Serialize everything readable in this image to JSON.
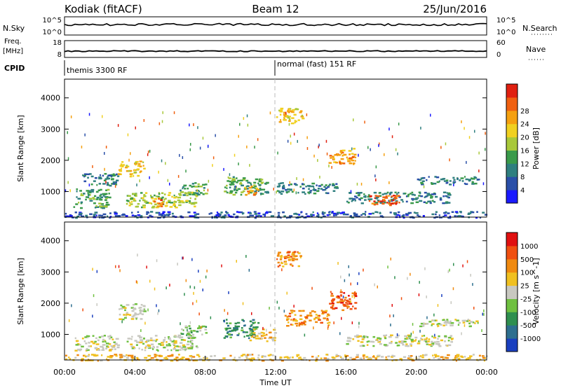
{
  "header": {
    "station": "Kodiak (fitACF)",
    "beam": "Beam 12",
    "date": "25/Jun/2016"
  },
  "top_panels": {
    "nsky_label": "N.Sky",
    "nsky_ticks": [
      "10^5",
      "10^0"
    ],
    "nsearch_label": "N.Search",
    "nsearch_ticks": [
      "10^5",
      "10^0"
    ],
    "freq_label": "Freq.",
    "freq_unit": "[MHz]",
    "freq_ticks": [
      "18",
      "8"
    ],
    "nave_label": "Nave",
    "nave_ticks": [
      "60",
      "0"
    ],
    "cpid_label": "CPID",
    "cpid_segments": [
      {
        "label": "themis 3300 RF",
        "start_hour": 0
      },
      {
        "label": "normal (fast) 151 RF",
        "start_hour": 12
      }
    ]
  },
  "chart_data": [
    {
      "type": "heatmap",
      "name": "power",
      "ylabel": "Slant Range [km]",
      "ylim": [
        180,
        4600
      ],
      "yticks": [
        1000,
        2000,
        3000,
        4000
      ],
      "xlim": [
        0,
        24
      ],
      "colorbar": {
        "label": "Power [dB]",
        "ticks": [
          "4",
          "8",
          "12",
          "16",
          "20",
          "24",
          "28"
        ],
        "colors": [
          "#1a1aff",
          "#2a4fa8",
          "#2f7f7f",
          "#3a9a4a",
          "#a8c83a",
          "#f0d020",
          "#f5a010",
          "#f06010",
          "#e02010"
        ]
      },
      "regions": [
        {
          "t0": 0.5,
          "t1": 2.5,
          "r0": 480,
          "r1": 1100,
          "level": 3
        },
        {
          "t0": 1.0,
          "t1": 3.0,
          "r0": 1200,
          "r1": 1600,
          "level": 2
        },
        {
          "t0": 3.0,
          "t1": 4.5,
          "r0": 1500,
          "r1": 2000,
          "level": 5
        },
        {
          "t0": 3.5,
          "t1": 7.5,
          "r0": 500,
          "r1": 1000,
          "level": 4
        },
        {
          "t0": 4.8,
          "t1": 5.6,
          "r0": 550,
          "r1": 800,
          "level": 7
        },
        {
          "t0": 6.5,
          "t1": 8.0,
          "r0": 900,
          "r1": 1300,
          "level": 3
        },
        {
          "t0": 9.0,
          "t1": 11.5,
          "r0": 900,
          "r1": 1500,
          "level": 3
        },
        {
          "t0": 10.2,
          "t1": 11.0,
          "r0": 900,
          "r1": 1200,
          "level": 6
        },
        {
          "t0": 12.0,
          "t1": 13.5,
          "r0": 3200,
          "r1": 3700,
          "level": 5
        },
        {
          "t0": 12.0,
          "t1": 15.5,
          "r0": 950,
          "r1": 1300,
          "level": 2
        },
        {
          "t0": 15.0,
          "t1": 16.5,
          "r0": 1900,
          "r1": 2400,
          "level": 6
        },
        {
          "t0": 16.0,
          "t1": 22.0,
          "r0": 650,
          "r1": 1000,
          "level": 2
        },
        {
          "t0": 17.2,
          "t1": 19.0,
          "r0": 600,
          "r1": 900,
          "level": 7
        },
        {
          "t0": 18.3,
          "t1": 18.9,
          "r0": 580,
          "r1": 760,
          "level": 8
        },
        {
          "t0": 20.0,
          "t1": 23.5,
          "r0": 1250,
          "r1": 1500,
          "level": 2
        },
        {
          "t0": 0.0,
          "t1": 24.0,
          "r0": 180,
          "r1": 380,
          "level": 1
        }
      ]
    },
    {
      "type": "heatmap",
      "name": "velocity",
      "ylabel": "Slant Range [km]",
      "ylim": [
        180,
        4600
      ],
      "yticks": [
        1000,
        2000,
        3000,
        4000
      ],
      "xlim": [
        0,
        24
      ],
      "xticks": [
        "00:00",
        "04:00",
        "08:00",
        "12:00",
        "16:00",
        "20:00",
        "00:00"
      ],
      "xlabel": "Time UT",
      "colorbar": {
        "label": "Velocity [m s^-1]",
        "ticks": [
          "1000",
          "500",
          "100",
          "25",
          "-25",
          "-100",
          "-500",
          "-1000"
        ],
        "colors": [
          "#1a3fbf",
          "#2e6f8f",
          "#2f8f4f",
          "#6fc040",
          "#c8c8c0",
          "#f0c020",
          "#f08a10",
          "#f05010",
          "#e01010"
        ]
      },
      "regions": [
        {
          "t0": 0.5,
          "t1": 3.0,
          "r0": 500,
          "r1": 1000,
          "level": 4
        },
        {
          "t0": 3.0,
          "t1": 4.5,
          "r0": 1500,
          "r1": 2000,
          "level": 4
        },
        {
          "t0": 3.5,
          "t1": 7.5,
          "r0": 500,
          "r1": 1000,
          "level": 4
        },
        {
          "t0": 6.5,
          "t1": 8.0,
          "r0": 900,
          "r1": 1300,
          "level": 3
        },
        {
          "t0": 9.0,
          "t1": 11.0,
          "r0": 900,
          "r1": 1500,
          "level": 2
        },
        {
          "t0": 10.5,
          "t1": 12.0,
          "r0": 800,
          "r1": 1200,
          "level": 5
        },
        {
          "t0": 12.0,
          "t1": 13.5,
          "r0": 3200,
          "r1": 3700,
          "level": 6
        },
        {
          "t0": 12.5,
          "t1": 15.0,
          "r0": 1300,
          "r1": 1800,
          "level": 6
        },
        {
          "t0": 15.0,
          "t1": 16.5,
          "r0": 1800,
          "r1": 2400,
          "level": 7
        },
        {
          "t0": 16.0,
          "t1": 22.0,
          "r0": 650,
          "r1": 1000,
          "level": 4
        },
        {
          "t0": 20.0,
          "t1": 23.5,
          "r0": 1250,
          "r1": 1500,
          "level": 4
        },
        {
          "t0": 0.0,
          "t1": 24.0,
          "r0": 180,
          "r1": 380,
          "level": 5
        }
      ]
    }
  ]
}
